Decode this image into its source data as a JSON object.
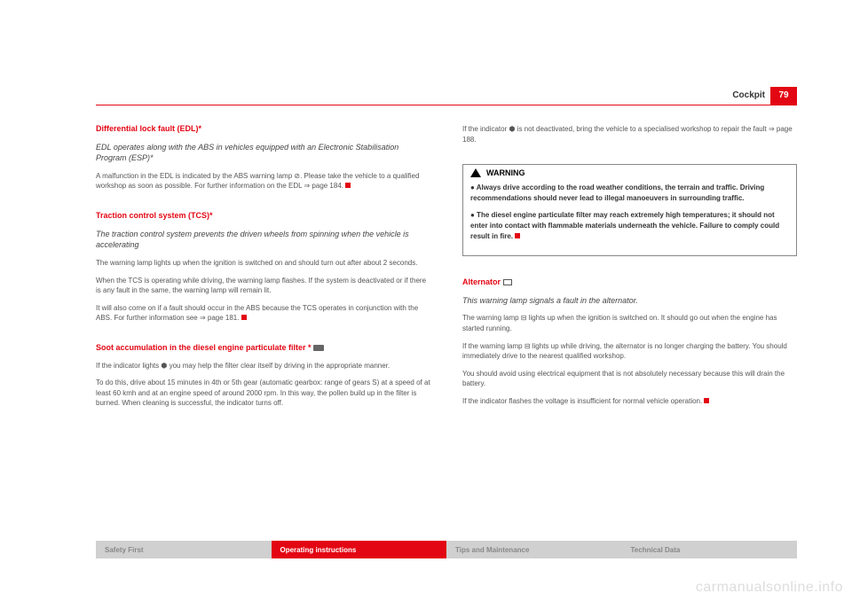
{
  "header": {
    "section": "Cockpit",
    "page_number": "79"
  },
  "col_left": {
    "s1": {
      "heading": "Differential lock fault (EDL)*",
      "sub": "EDL operates along with the ABS in vehicles equipped with an Electronic Stabilisation Program (ESP)*",
      "p1": "A malfunction in the EDL is indicated by the ABS warning lamp ⊘. Please take the vehicle to a qualified workshop as soon as possible. For further information on the EDL ⇒ page 184."
    },
    "s2": {
      "heading": "Traction control system (TCS)*",
      "sub": "The traction control system prevents the driven wheels from spinning when the vehicle is accelerating",
      "p1": "The warning lamp lights up when the ignition is switched on and should turn out after about 2 seconds.",
      "p2": "When the TCS is operating while driving, the warning lamp flashes. If the system is deactivated or if there is any fault in the same, the warning lamp will remain lit.",
      "p3": "It will also come on if a fault should occur in the ABS because the TCS operates in conjunction with the ABS. For further information see ⇒ page 181."
    },
    "s3": {
      "heading": "Soot accumulation in the diesel engine particulate filter * ",
      "p1": "If the indicator lights ⬢ you may help the filter clear itself by driving in the appropriate manner.",
      "p2": "To do this, drive about 15 minutes in 4th or 5th gear (automatic gearbox: range of gears S) at a speed of at least 60 kmh and at an engine speed of around 2000 rpm. In this way, the pollen build up in the filter is burned. When cleaning is successful, the indicator turns off."
    }
  },
  "col_right": {
    "p0": "If the indicator ⬢ is not deactivated, bring the vehicle to a specialised workshop to repair the fault ⇒ page 188.",
    "warning": {
      "title": "WARNING",
      "b1": "●   Always drive according to the road weather conditions, the terrain and traffic. Driving recommendations should never lead to illegal manoeuvers in surrounding traffic.",
      "b2": "●   The diesel engine particulate filter may reach extremely high temperatures; it should not enter into contact with flammable materials underneath the vehicle. Failure to comply could result in fire."
    },
    "alt": {
      "heading": "Alternator ",
      "sub": "This warning lamp signals a fault in the alternator.",
      "p1": "The warning lamp ⊟ lights up when the ignition is switched on. It should go out when the engine has started running.",
      "p2": "If the warning lamp ⊟ lights up while driving, the alternator is no longer charging the battery. You should immediately drive to the nearest qualified workshop.",
      "p3": "You should avoid using electrical equipment that is not absolutely necessary because this will drain the battery.",
      "p4": "If the indicator flashes the voltage is insufficient for normal vehicle operation."
    }
  },
  "footer": {
    "t1": "Safety First",
    "t2": "Operating instructions",
    "t3": "Tips and Maintenance",
    "t4": "Technical Data"
  },
  "watermark": "carmanualsonline.info",
  "colors": {
    "accent": "#e30613",
    "grey": "#d0d0d0",
    "text": "#555555",
    "heading_text": "#e30613"
  }
}
